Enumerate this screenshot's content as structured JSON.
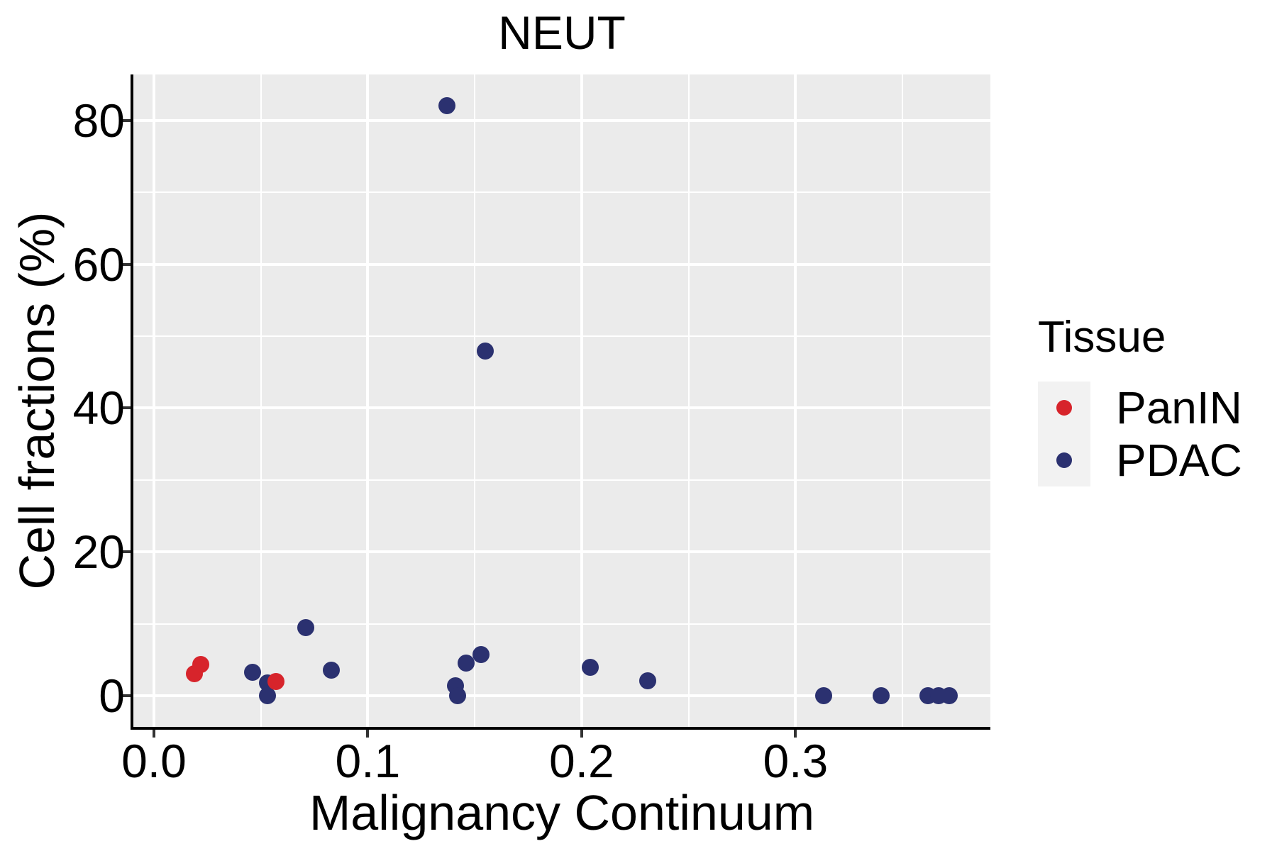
{
  "title": "NEUT",
  "axes": {
    "x": {
      "label": "Malignancy Continuum",
      "tick_labels": [
        "0.0",
        "0.1",
        "0.2",
        "0.3"
      ],
      "tick_values": [
        0,
        0.1,
        0.2,
        0.3
      ],
      "minor_ticks": [
        0.05,
        0.15,
        0.25,
        0.35
      ]
    },
    "y": {
      "label": "Cell fractions (%)",
      "tick_labels": [
        "0",
        "20",
        "40",
        "60",
        "80"
      ],
      "tick_values": [
        0,
        20,
        40,
        60,
        80
      ],
      "minor_ticks": [
        10,
        30,
        50,
        70
      ]
    }
  },
  "legend": {
    "title": "Tissue",
    "entries": [
      {
        "label": "PanIN",
        "color": "#d7242b"
      },
      {
        "label": "PDAC",
        "color": "#2b3170"
      }
    ]
  },
  "colors": {
    "panel_background": "#ebebeb",
    "gridline": "#ffffff",
    "axis_line": "#000000",
    "tick_mark": "#333333",
    "legend_key_background": "#f2f2f2",
    "panin": "#d7242b",
    "pdac": "#2b3170"
  },
  "chart_data": {
    "type": "scatter",
    "title": "NEUT",
    "xlabel": "Malignancy Continuum",
    "ylabel": "Cell fractions (%)",
    "xlim": [
      -0.0096,
      0.3911
    ],
    "ylim": [
      -4.34,
      86.41
    ],
    "grid": true,
    "legend_position": "right",
    "series": [
      {
        "name": "PDAC",
        "color": "#2b3170",
        "points": [
          [
            0.046,
            3.3
          ],
          [
            0.053,
            1.8
          ],
          [
            0.053,
            0
          ],
          [
            0.071,
            9.5
          ],
          [
            0.083,
            3.6
          ],
          [
            0.137,
            82.1
          ],
          [
            0.141,
            1.4
          ],
          [
            0.142,
            0
          ],
          [
            0.146,
            4.5
          ],
          [
            0.153,
            5.7
          ],
          [
            0.155,
            47.9
          ],
          [
            0.204,
            3.9
          ],
          [
            0.231,
            2.1
          ],
          [
            0.313,
            0
          ],
          [
            0.34,
            0
          ],
          [
            0.362,
            0
          ],
          [
            0.367,
            0
          ],
          [
            0.372,
            0
          ]
        ]
      },
      {
        "name": "PanIN",
        "color": "#d7242b",
        "points": [
          [
            0.019,
            3.1
          ],
          [
            0.022,
            4.3
          ],
          [
            0.057,
            2.0
          ]
        ]
      }
    ]
  }
}
